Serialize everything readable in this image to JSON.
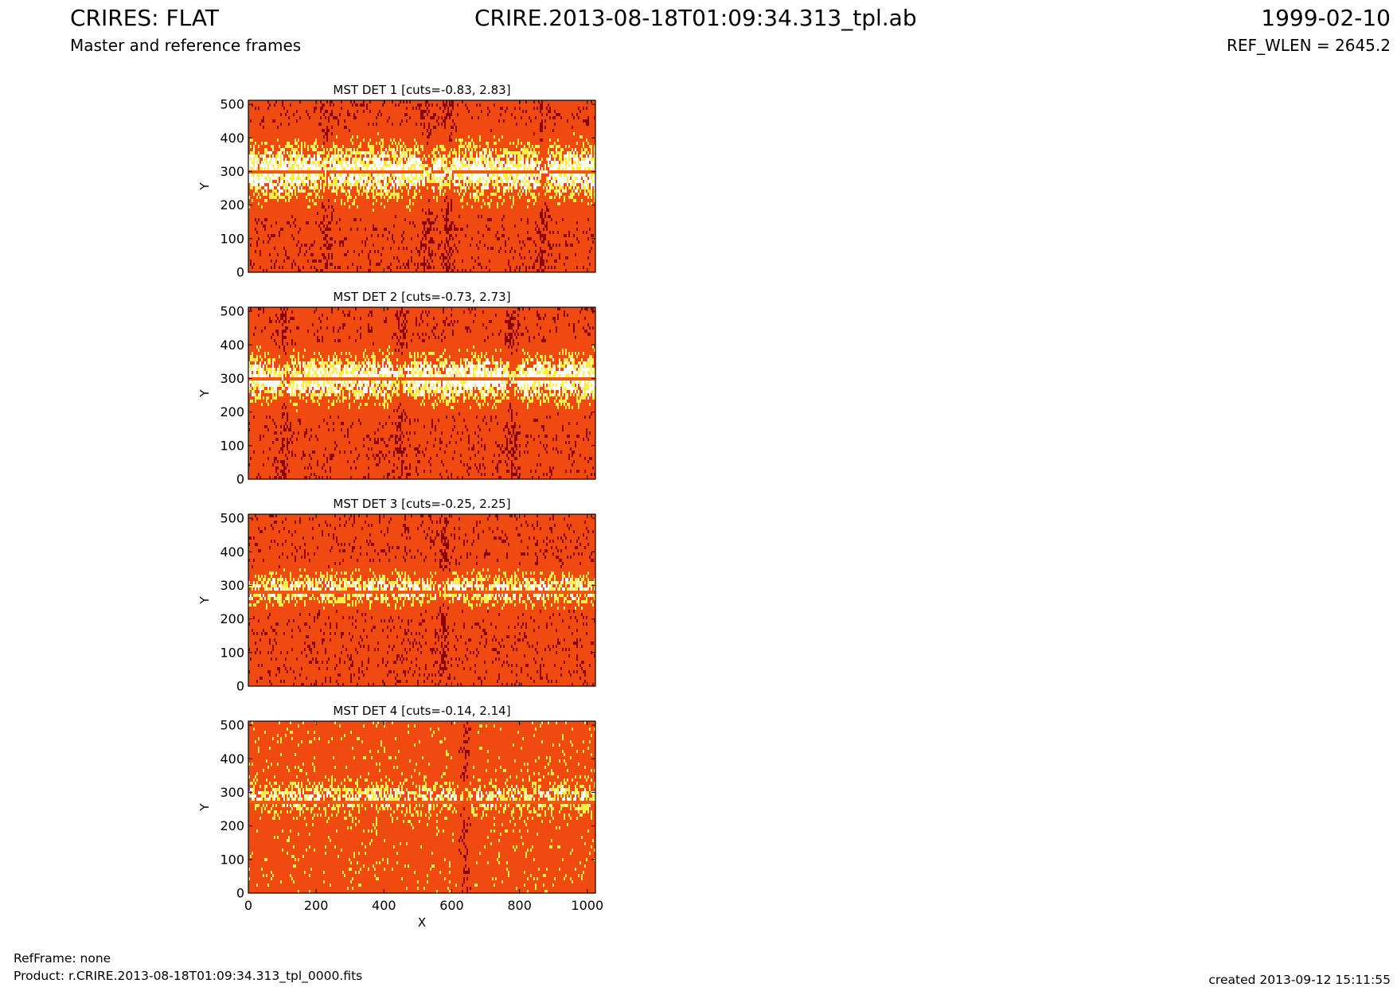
{
  "header": {
    "title_left": "CRIRES: FLAT",
    "title_center": "CRIRE.2013-08-18T01:09:34.313_tpl.ab",
    "title_right": "1999-02-10",
    "subtitle_left": "Master and reference frames",
    "subtitle_right": "REF_WLEN = 2645.2"
  },
  "footer": {
    "ref_frame": "RefFrame: none",
    "product": "Product: r.CRIRE.2013-08-18T01:09:34.313_tpl_0000.fits",
    "created": "created 2013-09-12 15:11:55"
  },
  "colors": {
    "base": "#f04a10",
    "dark": "#8a0000",
    "yellow": "#ffee44",
    "white": "#ffffff",
    "band": "#f25a10"
  },
  "chart_data": [
    {
      "type": "heatmap",
      "title": "MST DET 1 [cuts=-0.83, 2.83]",
      "xlabel": "",
      "ylabel": "Y",
      "xlim": [
        0,
        1024
      ],
      "ylim": [
        0,
        512
      ],
      "xticks": [],
      "yticks": [
        0,
        100,
        200,
        300,
        400,
        500
      ],
      "colormap": "hot",
      "cuts": [
        -0.83,
        2.83
      ],
      "bright_band_y": [
        230,
        370
      ],
      "dark_line_y": 300,
      "vertical_features_x": [
        230,
        530,
        590,
        870
      ]
    },
    {
      "type": "heatmap",
      "title": "MST DET 2 [cuts=-0.73, 2.73]",
      "xlabel": "",
      "ylabel": "Y",
      "xlim": [
        0,
        1024
      ],
      "ylim": [
        0,
        512
      ],
      "xticks": [],
      "yticks": [
        0,
        100,
        200,
        300,
        400,
        500
      ],
      "colormap": "hot",
      "cuts": [
        -0.73,
        2.73
      ],
      "bright_band_y": [
        240,
        360
      ],
      "dark_line_y": 300,
      "vertical_features_x": [
        105,
        450,
        780
      ]
    },
    {
      "type": "heatmap",
      "title": "MST DET 3 [cuts=-0.25, 2.25]",
      "xlabel": "",
      "ylabel": "Y",
      "xlim": [
        0,
        1024
      ],
      "ylim": [
        0,
        512
      ],
      "xticks": [],
      "yticks": [
        0,
        100,
        200,
        300,
        400,
        500
      ],
      "colormap": "hot",
      "cuts": [
        -0.25,
        2.25
      ],
      "bright_band_y": [
        250,
        330
      ],
      "dark_line_y": 283,
      "vertical_features_x": [
        575
      ]
    },
    {
      "type": "heatmap",
      "title": "MST DET 4 [cuts=-0.14, 2.14]",
      "xlabel": "X",
      "ylabel": "Y",
      "xlim": [
        0,
        1024
      ],
      "ylim": [
        0,
        512
      ],
      "xticks": [
        0,
        200,
        400,
        600,
        800,
        1000
      ],
      "yticks": [
        0,
        100,
        200,
        300,
        400,
        500
      ],
      "colormap": "hot",
      "cuts": [
        -0.14,
        2.14
      ],
      "bright_band_y": [
        250,
        320
      ],
      "dark_line_y": 272,
      "vertical_features_x": [
        640
      ]
    }
  ]
}
